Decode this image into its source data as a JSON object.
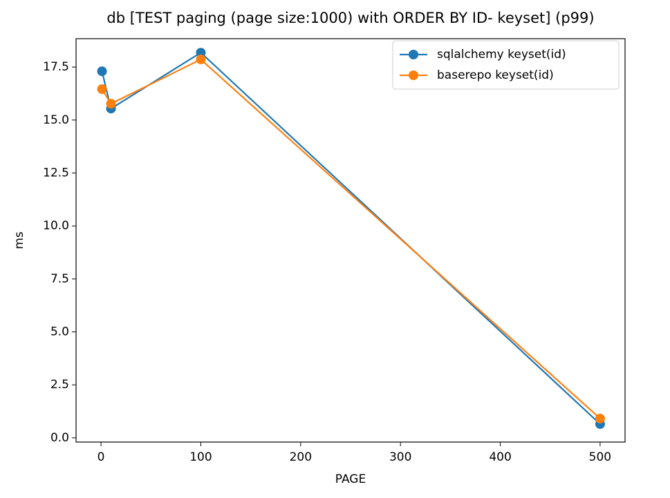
{
  "chart_data": {
    "type": "line",
    "title": "db [TEST paging (page size:1000) with ORDER BY ID- keyset] (p99)",
    "x_label": "PAGE",
    "y_label": "ms",
    "x": [
      1,
      10,
      100,
      500
    ],
    "series": [
      {
        "name": "sqlalchemy keyset(id)",
        "color": "#1f77b4",
        "values": [
          17.3,
          15.54,
          18.18,
          0.65
        ]
      },
      {
        "name": "baserepo keyset(id)",
        "color": "#ff7f0e",
        "values": [
          16.46,
          15.77,
          17.86,
          0.91
        ]
      }
    ],
    "xlim": [
      -25,
      525
    ],
    "xticks": [
      0,
      100,
      200,
      300,
      400,
      500
    ],
    "ylim": [
      -0.2,
      18.84
    ],
    "yticks": [
      {
        "value": 0,
        "label": "0.0"
      },
      2.5,
      {
        "value": 5,
        "label": "5.0"
      },
      7.5,
      {
        "value": 10,
        "label": "10.0"
      },
      12.5,
      {
        "value": 15,
        "label": "15.0"
      },
      17.5
    ],
    "grid": false,
    "legend": "upper right",
    "markers": true
  }
}
